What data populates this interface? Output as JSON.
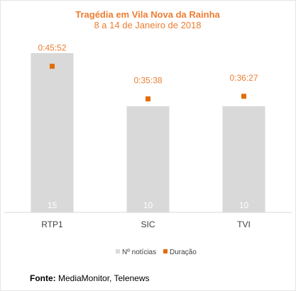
{
  "chart_data": {
    "type": "bar",
    "title": "Tragédia em Vila Nova da Rainha",
    "subtitle": "8 a 14 de Janeiro de 2018",
    "categories": [
      "RTP1",
      "SIC",
      "TVI"
    ],
    "series": [
      {
        "name": "Nº notícias",
        "kind": "bar",
        "color": "#d9d9d9",
        "values": [
          15,
          10,
          10
        ]
      },
      {
        "name": "Duração",
        "kind": "marker",
        "color": "#e36c09",
        "values": [
          "0:45:52",
          "0:35:38",
          "0:36:27"
        ],
        "seconds": [
          2752,
          2138,
          2187
        ]
      }
    ],
    "bar_axis_range": [
      0,
      16
    ],
    "duration_axis_range_seconds": [
      0,
      3200
    ],
    "legend_position": "bottom",
    "grid": false
  },
  "source": {
    "label": "Fonte:",
    "text": "MediaMonitor, Telenews"
  }
}
